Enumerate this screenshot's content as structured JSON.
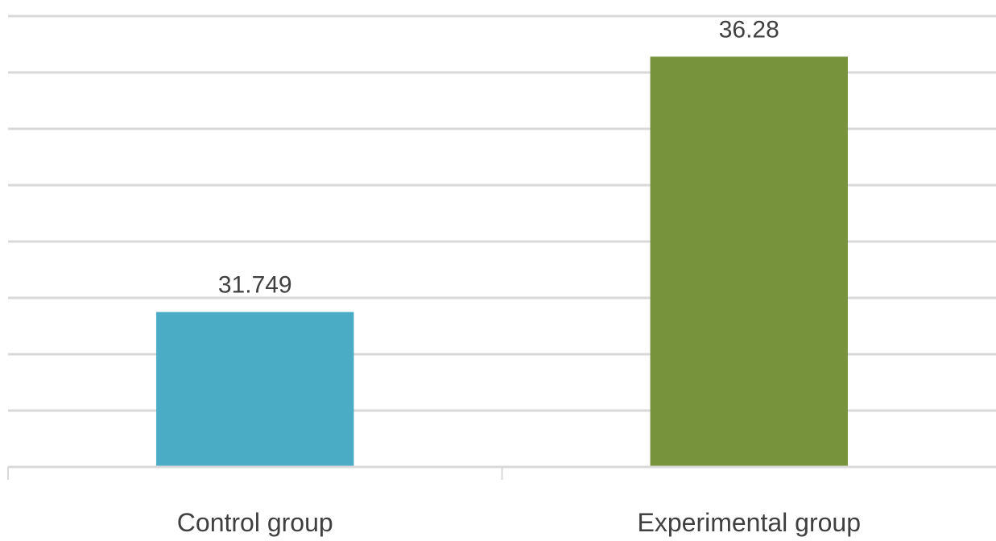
{
  "chart_data": {
    "type": "bar",
    "title": "",
    "xlabel": "",
    "ylabel": "",
    "categories": [
      "Control group",
      "Experimental group"
    ],
    "values": [
      31.749,
      36.28
    ],
    "value_labels": [
      "31.749",
      "36.28"
    ],
    "ylim": [
      29,
      37
    ],
    "grid": true,
    "legend": "none",
    "colors": [
      "#4bacc6",
      "#77933c"
    ]
  }
}
